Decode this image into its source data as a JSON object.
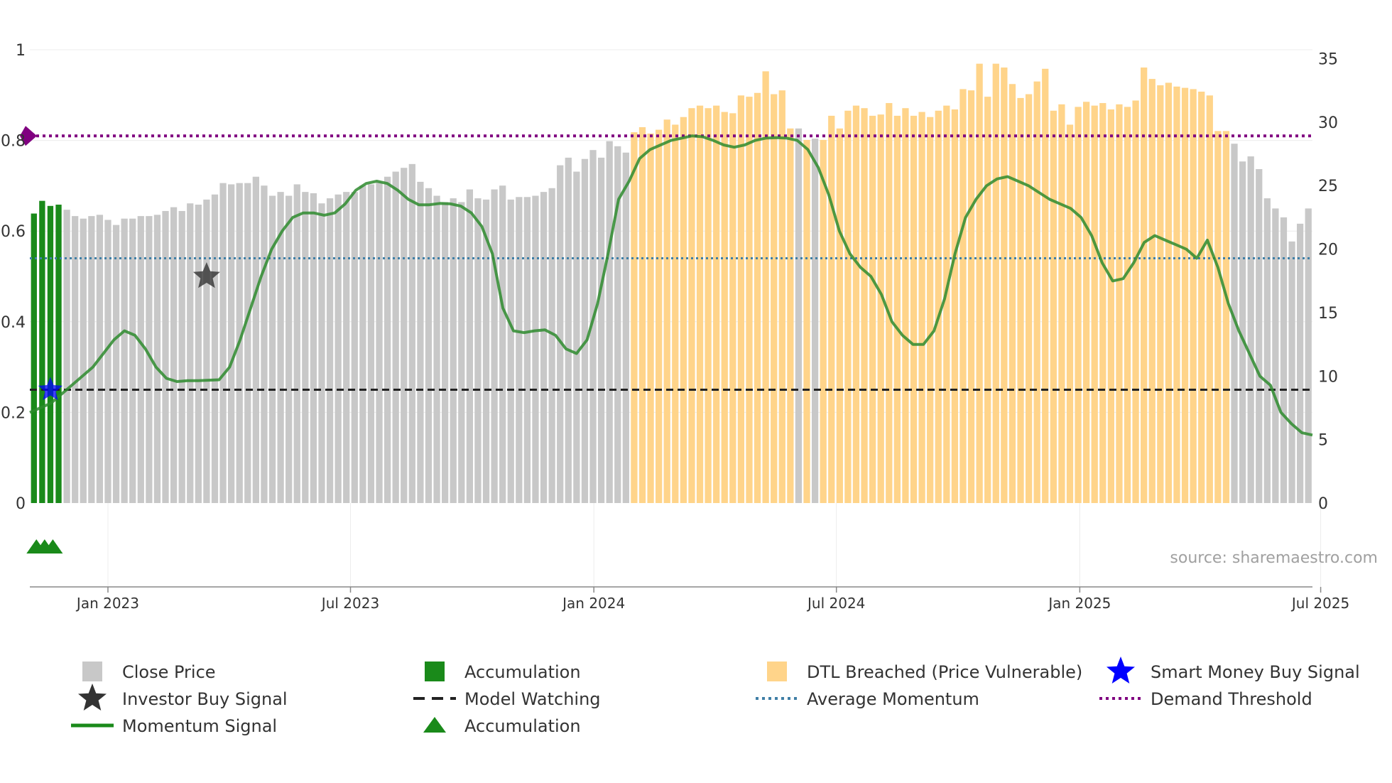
{
  "chart_data": {
    "type": "bar",
    "title": "",
    "source_text": "source: sharemaestro.com",
    "left_axis": {
      "range": [
        0,
        1
      ],
      "ticks": [
        0,
        0.2,
        0.4,
        0.6,
        0.8,
        1
      ],
      "tick_labels": [
        "0",
        "0.2",
        "0.4",
        "0.6",
        "0.8",
        "1"
      ]
    },
    "right_axis": {
      "range": [
        0,
        35.7
      ],
      "ticks": [
        0,
        5,
        10,
        15,
        20,
        25,
        30,
        35
      ],
      "tick_labels": [
        "0",
        "5",
        "10",
        "15",
        "20",
        "25",
        "30",
        "35"
      ]
    },
    "x_axis": {
      "tick_labels": [
        "Jan 2023",
        "Jul 2023",
        "Jan 2024",
        "Jul 2024",
        "Jan 2025",
        "Jul 2025"
      ]
    },
    "colors": {
      "close": "#c8c8c8",
      "accumulation": "#1a8a1a",
      "dtl": "#ffd48a",
      "momentum": "#2e8b2e",
      "model": "#222222",
      "average": "#3f7fa6",
      "demand": "#800080",
      "smart_money": "#0000ff",
      "investor": "#333333"
    },
    "bars": {
      "values": [
        22.8,
        23.8,
        23.4,
        23.5,
        23.1,
        22.6,
        22.4,
        22.6,
        22.7,
        22.3,
        21.9,
        22.4,
        22.4,
        22.6,
        22.6,
        22.7,
        23.0,
        23.3,
        23.0,
        23.6,
        23.5,
        23.9,
        24.3,
        25.2,
        25.1,
        25.2,
        25.2,
        25.7,
        25.0,
        24.2,
        24.5,
        24.2,
        25.1,
        24.5,
        24.4,
        23.6,
        24.0,
        24.3,
        24.5,
        24.5,
        25.0,
        25.1,
        25.3,
        25.7,
        26.1,
        26.4,
        26.7,
        25.3,
        24.8,
        24.2,
        23.7,
        24.0,
        23.7,
        24.7,
        24.0,
        23.9,
        24.7,
        25.0,
        23.9,
        24.1,
        24.1,
        24.2,
        24.5,
        24.8,
        26.6,
        27.2,
        26.1,
        27.1,
        27.8,
        27.2,
        28.5,
        28.1,
        27.6,
        29.2,
        29.6,
        29.1,
        29.4,
        30.2,
        29.8,
        30.4,
        31.1,
        31.3,
        31.1,
        31.3,
        30.8,
        30.7,
        32.1,
        32.0,
        32.3,
        34.0,
        32.2,
        32.5,
        29.5,
        29.5,
        28.6,
        28.7,
        28.6,
        30.5,
        29.5,
        30.9,
        31.3,
        31.1,
        30.5,
        30.6,
        31.5,
        30.5,
        31.1,
        30.5,
        30.8,
        30.4,
        30.9,
        31.3,
        31.0,
        32.6,
        32.5,
        34.6,
        32.0,
        34.6,
        34.3,
        33.0,
        31.9,
        32.2,
        33.2,
        34.2,
        30.9,
        31.4,
        29.8,
        31.2,
        31.6,
        31.3,
        31.5,
        31.0,
        31.4,
        31.2,
        31.7,
        34.3,
        33.4,
        32.9,
        33.1,
        32.8,
        32.7,
        32.6,
        32.4,
        32.1,
        29.3,
        29.3,
        28.3,
        26.9,
        27.3,
        26.3,
        24.0,
        23.2,
        22.5,
        20.6,
        22.0,
        23.2
      ],
      "segments": [
        {
          "from": 0,
          "to": 3,
          "category": "accumulation"
        },
        {
          "from": 4,
          "to": 72,
          "category": "close"
        },
        {
          "from": 73,
          "to": 92,
          "category": "dtl"
        },
        {
          "from": 93,
          "to": 93,
          "category": "close"
        },
        {
          "from": 94,
          "to": 94,
          "category": "dtl"
        },
        {
          "from": 95,
          "to": 95,
          "category": "close"
        },
        {
          "from": 96,
          "to": 145,
          "category": "dtl"
        },
        {
          "from": 146,
          "to": 153,
          "category": "close"
        }
      ]
    },
    "series": [
      {
        "name": "Momentum Signal",
        "axis": "left",
        "values": [
          0.2,
          0.21,
          0.22,
          0.24,
          0.26,
          0.28,
          0.3,
          0.33,
          0.36,
          0.38,
          0.37,
          0.34,
          0.3,
          0.275,
          0.268,
          0.27,
          0.27,
          0.271,
          0.272,
          0.3,
          0.36,
          0.43,
          0.5,
          0.56,
          0.6,
          0.63,
          0.64,
          0.64,
          0.635,
          0.64,
          0.66,
          0.69,
          0.705,
          0.71,
          0.705,
          0.69,
          0.67,
          0.658,
          0.658,
          0.661,
          0.66,
          0.655,
          0.64,
          0.61,
          0.55,
          0.43,
          0.38,
          0.376,
          0.38,
          0.382,
          0.37,
          0.34,
          0.33,
          0.36,
          0.44,
          0.55,
          0.67,
          0.71,
          0.76,
          0.78,
          0.79,
          0.8,
          0.805,
          0.81,
          0.808,
          0.8,
          0.79,
          0.785,
          0.79,
          0.8,
          0.805,
          0.806,
          0.805,
          0.8,
          0.78,
          0.74,
          0.68,
          0.6,
          0.55,
          0.52,
          0.5,
          0.46,
          0.4,
          0.37,
          0.35,
          0.35,
          0.38,
          0.45,
          0.55,
          0.63,
          0.67,
          0.7,
          0.715,
          0.72,
          0.71,
          0.7,
          0.685,
          0.67,
          0.66,
          0.65,
          0.63,
          0.59,
          0.53,
          0.49,
          0.495,
          0.53,
          0.575,
          0.59,
          0.58,
          0.57,
          0.56,
          0.54,
          0.58,
          0.52,
          0.44,
          0.38,
          0.33,
          0.28,
          0.26,
          0.2,
          0.175,
          0.155,
          0.15
        ]
      }
    ],
    "lines": [
      {
        "name": "Model Watching",
        "value": 0.25,
        "axis": "left"
      },
      {
        "name": "Average Momentum",
        "value": 0.54,
        "axis": "left"
      },
      {
        "name": "Demand Threshold",
        "value": 0.81,
        "axis": "left"
      }
    ],
    "markers": [
      {
        "name": "Smart Money Buy Signal",
        "x": 2,
        "y": 0.25
      },
      {
        "name": "Investor Buy Signal",
        "x": 21,
        "y": 0.5
      },
      {
        "name": "Accumulation",
        "x": [
          1,
          2,
          3
        ]
      }
    ],
    "legend": {
      "placement": "bottom",
      "items": [
        {
          "label": "Close Price",
          "key": "close",
          "symbol": "square"
        },
        {
          "label": "Accumulation",
          "key": "accumulation",
          "symbol": "square"
        },
        {
          "label": "DTL Breached (Price Vulnerable)",
          "key": "dtl",
          "symbol": "square"
        },
        {
          "label": "Smart Money Buy Signal",
          "key": "smart_money",
          "symbol": "star"
        },
        {
          "label": "Investor Buy Signal",
          "key": "investor",
          "symbol": "star"
        },
        {
          "label": "Model Watching",
          "key": "model",
          "symbol": "dash"
        },
        {
          "label": "Average Momentum",
          "key": "average",
          "symbol": "dot"
        },
        {
          "label": "Demand Threshold",
          "key": "demand",
          "symbol": "dot"
        },
        {
          "label": "Momentum Signal",
          "key": "momentum",
          "symbol": "line"
        },
        {
          "label": "Accumulation",
          "key": "accumulation",
          "symbol": "triangle"
        }
      ]
    }
  }
}
